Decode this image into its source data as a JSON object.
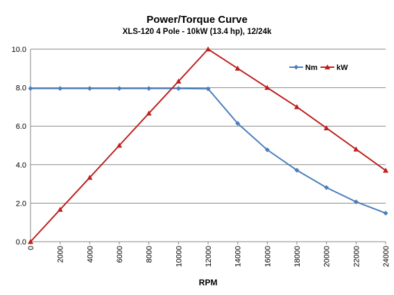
{
  "chart_data": {
    "type": "line",
    "title": "Power/Torque Curve",
    "subtitle": "XLS-120  4 Pole - 10kW (13.4 hp), 12/24k",
    "xlabel": "RPM",
    "ylabel": "",
    "x": [
      0,
      2000,
      4000,
      6000,
      8000,
      10000,
      12000,
      14000,
      16000,
      18000,
      20000,
      22000,
      24000
    ],
    "xlim": [
      0,
      24000
    ],
    "ylim": [
      0,
      10
    ],
    "x_ticks": [
      "0",
      "2000",
      "4000",
      "6000",
      "8000",
      "10000",
      "12000",
      "14000",
      "16000",
      "18000",
      "20000",
      "22000",
      "24000"
    ],
    "y_ticks": [
      "0.0",
      "2.0",
      "4.0",
      "6.0",
      "8.0",
      "10.0"
    ],
    "grid": "horizontal",
    "legend_position": "top-right",
    "series": [
      {
        "name": "Nm",
        "color": "#4a7ebb",
        "marker": "diamond",
        "values": [
          7.96,
          7.96,
          7.96,
          7.96,
          7.96,
          7.96,
          7.94,
          6.14,
          4.77,
          3.71,
          2.81,
          2.07,
          1.48
        ]
      },
      {
        "name": "kW",
        "color": "#be1e1e",
        "marker": "triangle",
        "values": [
          0.0,
          1.67,
          3.33,
          5.0,
          6.67,
          8.33,
          10.0,
          9.0,
          8.0,
          7.0,
          5.9,
          4.8,
          3.7
        ]
      }
    ]
  }
}
